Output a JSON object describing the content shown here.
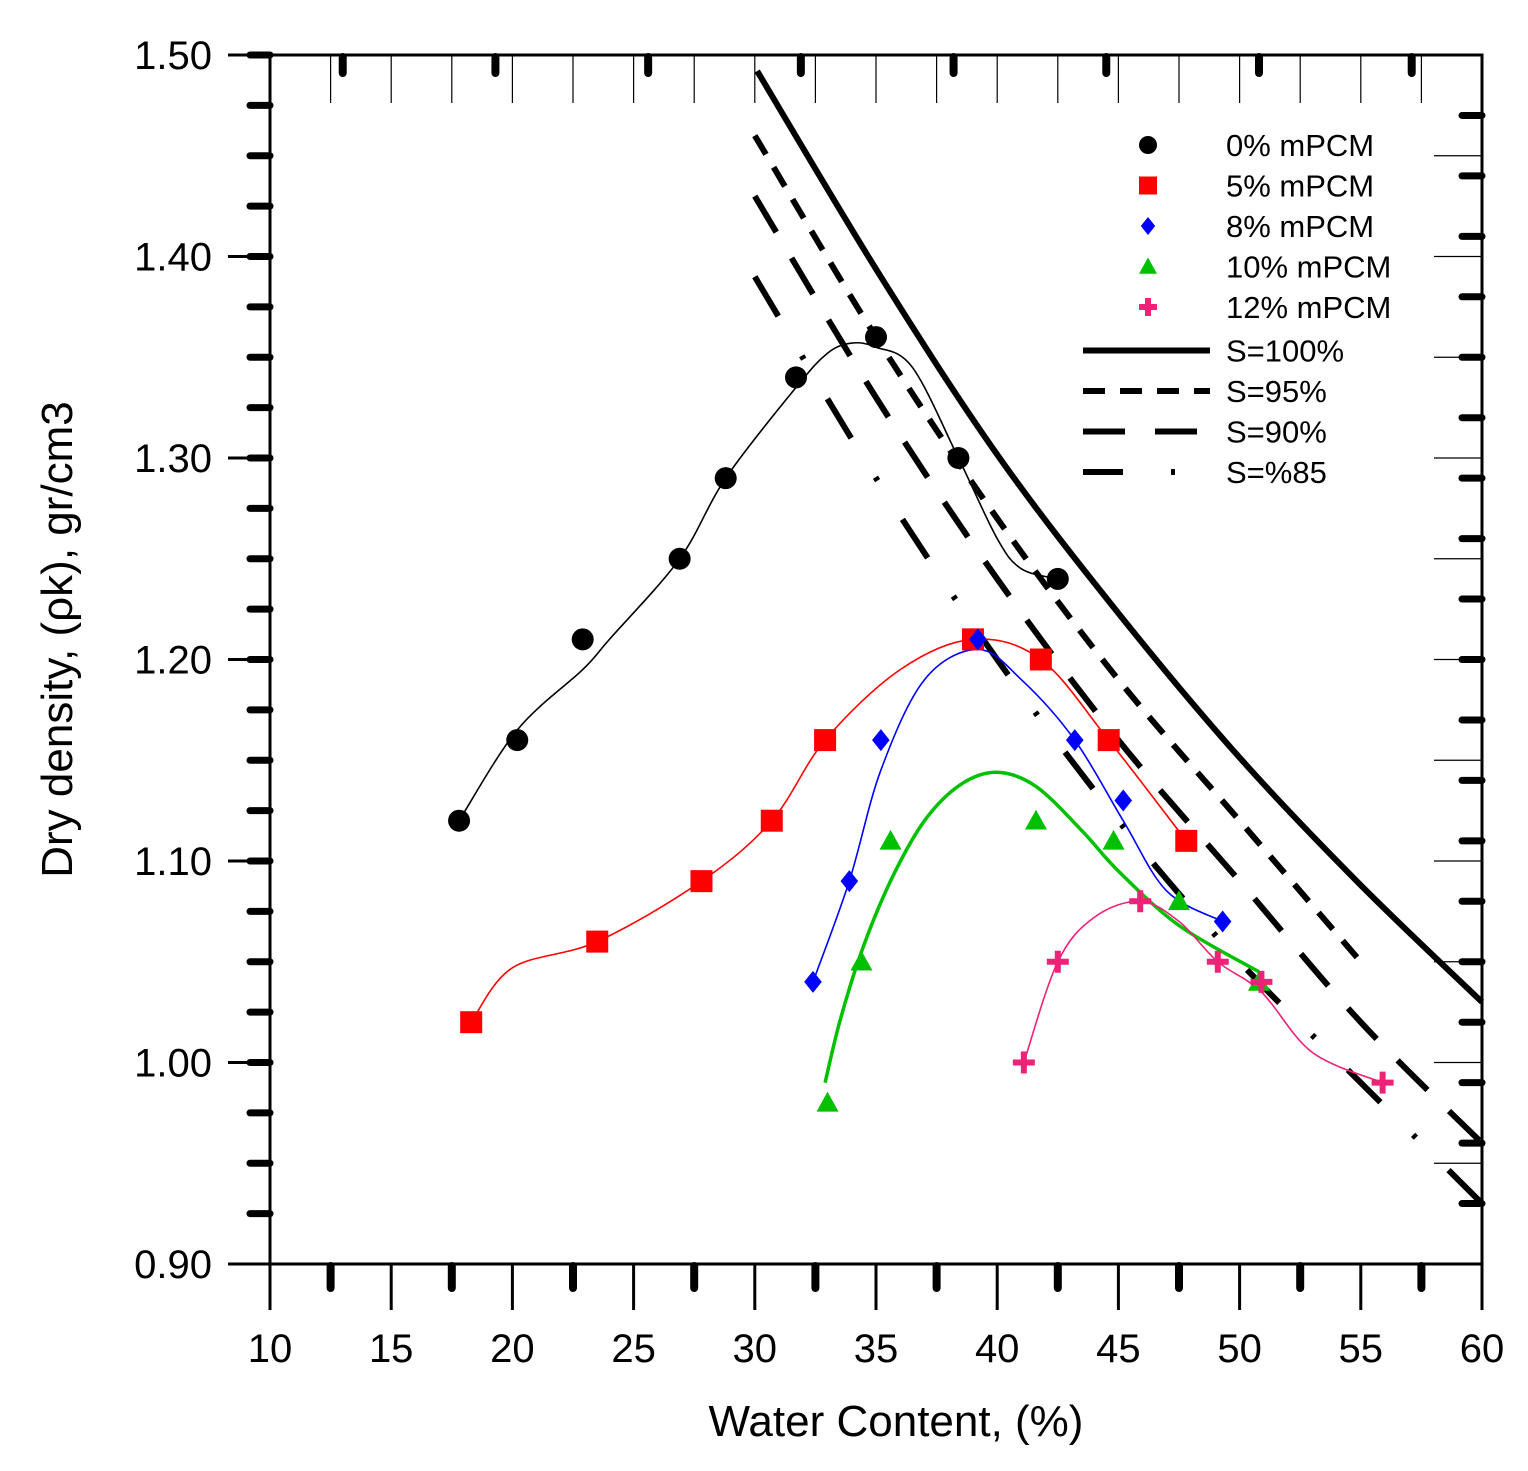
{
  "chart_data": {
    "type": "scatter",
    "title": "",
    "xlabel": "Water Content, (%)",
    "ylabel": "Dry density, (ρk), gr/cm3",
    "xlim": [
      10,
      60
    ],
    "ylim": [
      0.9,
      1.5
    ],
    "x_ticks": [
      10,
      15,
      20,
      25,
      30,
      35,
      40,
      45,
      50,
      55,
      60
    ],
    "x_tick_labels": [
      "10",
      "15",
      "20",
      "25",
      "30",
      "35",
      "40",
      "45",
      "50",
      "55",
      "60"
    ],
    "y_ticks": [
      0.9,
      1.0,
      1.1,
      1.2,
      1.3,
      1.4,
      1.5
    ],
    "y_tick_labels": [
      "0.90",
      "1.00",
      "1.10",
      "1.20",
      "1.30",
      "1.40",
      "1.50"
    ],
    "legend_position": "top-right",
    "series": [
      {
        "name": "0% mPCM",
        "marker": "circle",
        "color": "#000000",
        "x": [
          17.8,
          20.2,
          22.9,
          26.9,
          28.8,
          31.7,
          35.0,
          38.4,
          42.5
        ],
        "y": [
          1.12,
          1.16,
          1.21,
          1.25,
          1.29,
          1.34,
          1.36,
          1.3,
          1.24
        ]
      },
      {
        "name": "5% mPCM",
        "marker": "square",
        "color": "#ff0000",
        "x": [
          18.3,
          23.5,
          27.8,
          30.7,
          32.9,
          39.0,
          41.8,
          44.6,
          47.8
        ],
        "y": [
          1.02,
          1.06,
          1.09,
          1.12,
          1.16,
          1.21,
          1.2,
          1.16,
          1.11
        ]
      },
      {
        "name": "8% mPCM",
        "marker": "diamond",
        "color": "#0000ff",
        "x": [
          32.4,
          33.9,
          35.2,
          39.2,
          43.2,
          45.2,
          49.3
        ],
        "y": [
          1.04,
          1.09,
          1.16,
          1.21,
          1.16,
          1.13,
          1.07
        ]
      },
      {
        "name": "10% mPCM",
        "marker": "triangle",
        "color": "#00c000",
        "x": [
          33.0,
          34.4,
          35.6,
          41.6,
          44.8,
          47.5,
          50.8
        ],
        "y": [
          0.98,
          1.05,
          1.11,
          1.12,
          1.11,
          1.08,
          1.04
        ]
      },
      {
        "name": "12% mPCM",
        "marker": "plus",
        "color": "#ee2277",
        "x": [
          41.1,
          42.5,
          45.9,
          49.1,
          50.9,
          55.9
        ],
        "y": [
          1.0,
          1.05,
          1.08,
          1.05,
          1.04,
          0.99
        ]
      }
    ],
    "saturation_lines": [
      {
        "name": "S=100%",
        "style": "solid",
        "x": [
          30.1,
          35.2,
          40.1,
          45.2,
          50.1,
          55.0,
          60.0
        ],
        "y": [
          1.492,
          1.39,
          1.3,
          1.22,
          1.15,
          1.088,
          1.03
        ]
      },
      {
        "name": "S=95%",
        "style": "dashed",
        "x": [
          30.0,
          35.0,
          40.0,
          45.0,
          50.0,
          55.0
        ],
        "y": [
          1.46,
          1.36,
          1.27,
          1.19,
          1.12,
          1.05
        ]
      },
      {
        "name": "S=90%",
        "style": "long-dashed",
        "x": [
          30.0,
          35.0,
          40.0,
          45.0,
          50.0,
          55.0,
          60.0
        ],
        "y": [
          1.43,
          1.33,
          1.24,
          1.16,
          1.09,
          1.02,
          0.96
        ]
      },
      {
        "name": "S=%85",
        "style": "dash-dot",
        "x": [
          30.0,
          35.0,
          40.0,
          45.0,
          50.0,
          55.0,
          60.0
        ],
        "y": [
          1.39,
          1.29,
          1.2,
          1.12,
          1.05,
          0.99,
          0.93
        ]
      }
    ],
    "fit_curves": [
      {
        "series": "0% mPCM",
        "color": "#000000",
        "x": [
          17.8,
          20.2,
          22.9,
          24.0,
          26.9,
          28.8,
          31.7,
          33.0,
          34.0,
          35.0,
          36.5,
          38.4,
          40.0,
          41.0,
          42.5
        ],
        "y": [
          1.12,
          1.165,
          1.195,
          1.21,
          1.25,
          1.29,
          1.335,
          1.352,
          1.357,
          1.355,
          1.345,
          1.3,
          1.26,
          1.245,
          1.24
        ]
      },
      {
        "series": "5% mPCM",
        "color": "#ff0000",
        "x": [
          18.3,
          20.0,
          23.5,
          27.8,
          30.7,
          32.9,
          36.0,
          39.0,
          41.8,
          44.6,
          47.8
        ],
        "y": [
          1.02,
          1.047,
          1.06,
          1.09,
          1.12,
          1.16,
          1.195,
          1.21,
          1.2,
          1.16,
          1.11
        ]
      },
      {
        "series": "8% mPCM",
        "color": "#0000ff",
        "x": [
          32.4,
          33.9,
          35.2,
          37.0,
          39.2,
          41.0,
          43.2,
          45.2,
          47.0,
          49.3
        ],
        "y": [
          1.04,
          1.09,
          1.145,
          1.19,
          1.205,
          1.19,
          1.16,
          1.12,
          1.085,
          1.07
        ]
      },
      {
        "series": "10% mPCM",
        "color": "#00c000",
        "x": [
          32.9,
          33.5,
          34.4,
          35.6,
          37.0,
          38.5,
          40.0,
          41.6,
          43.5,
          45.0,
          47.5,
          50.8
        ],
        "y": [
          0.99,
          1.02,
          1.055,
          1.09,
          1.12,
          1.138,
          1.144,
          1.137,
          1.115,
          1.095,
          1.068,
          1.045
        ]
      },
      {
        "series": "12% mPCM",
        "color": "#ee2277",
        "x": [
          41.1,
          42.5,
          44.0,
          45.9,
          47.5,
          49.1,
          50.9,
          53.0,
          55.9
        ],
        "y": [
          1.0,
          1.05,
          1.072,
          1.08,
          1.07,
          1.05,
          1.035,
          1.005,
          0.99
        ]
      }
    ]
  }
}
